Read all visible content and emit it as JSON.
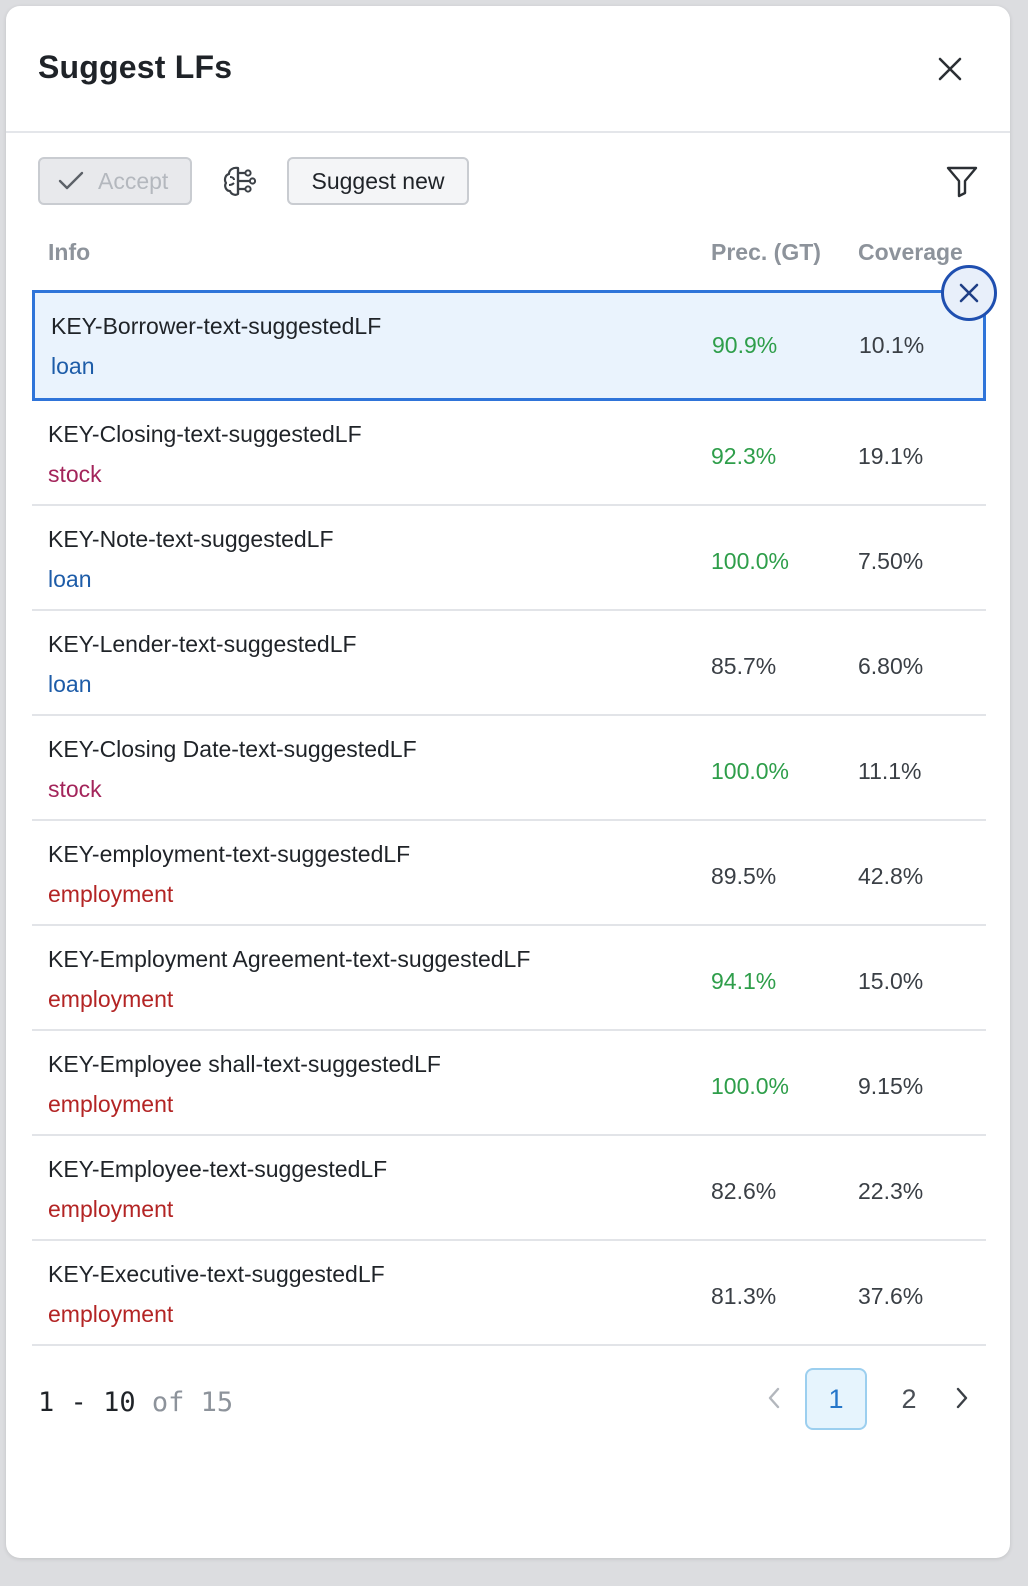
{
  "dialog": {
    "title": "Suggest LFs"
  },
  "toolbar": {
    "accept_label": "Accept",
    "suggest_label": "Suggest new"
  },
  "columns": {
    "info": "Info",
    "precision": "Prec. (GT)",
    "coverage": "Coverage"
  },
  "colors": {
    "loan": "#1d5ca8",
    "stock": "#a3245a",
    "employment": "#b32424",
    "precision_high": "#2e9e4a",
    "precision_normal": "#3a3f45",
    "selected_border": "#2f74d9"
  },
  "rows": [
    {
      "name": "KEY-Borrower-text-suggestedLF",
      "tag": "loan",
      "precision": "90.9%",
      "coverage": "10.1%",
      "high": true,
      "selected": true
    },
    {
      "name": "KEY-Closing-text-suggestedLF",
      "tag": "stock",
      "precision": "92.3%",
      "coverage": "19.1%",
      "high": true
    },
    {
      "name": "KEY-Note-text-suggestedLF",
      "tag": "loan",
      "precision": "100.0%",
      "coverage": "7.50%",
      "high": true
    },
    {
      "name": "KEY-Lender-text-suggestedLF",
      "tag": "loan",
      "precision": "85.7%",
      "coverage": "6.80%",
      "high": false
    },
    {
      "name": "KEY-Closing Date-text-suggestedLF",
      "tag": "stock",
      "precision": "100.0%",
      "coverage": "11.1%",
      "high": true
    },
    {
      "name": "KEY-employment-text-suggestedLF",
      "tag": "employment",
      "precision": "89.5%",
      "coverage": "42.8%",
      "high": false
    },
    {
      "name": "KEY-Employment Agreement-text-suggestedLF",
      "tag": "employment",
      "precision": "94.1%",
      "coverage": "15.0%",
      "high": true
    },
    {
      "name": "KEY-Employee shall-text-suggestedLF",
      "tag": "employment",
      "precision": "100.0%",
      "coverage": "9.15%",
      "high": true
    },
    {
      "name": "KEY-Employee-text-suggestedLF",
      "tag": "employment",
      "precision": "82.6%",
      "coverage": "22.3%",
      "high": false
    },
    {
      "name": "KEY-Executive-text-suggestedLF",
      "tag": "employment",
      "precision": "81.3%",
      "coverage": "37.6%",
      "high": false
    }
  ],
  "pagination": {
    "range_start": "1",
    "range_sep": "-",
    "range_end": "10",
    "of_label": "of",
    "total": "15",
    "pages": [
      "1",
      "2"
    ],
    "current_page": "1"
  }
}
